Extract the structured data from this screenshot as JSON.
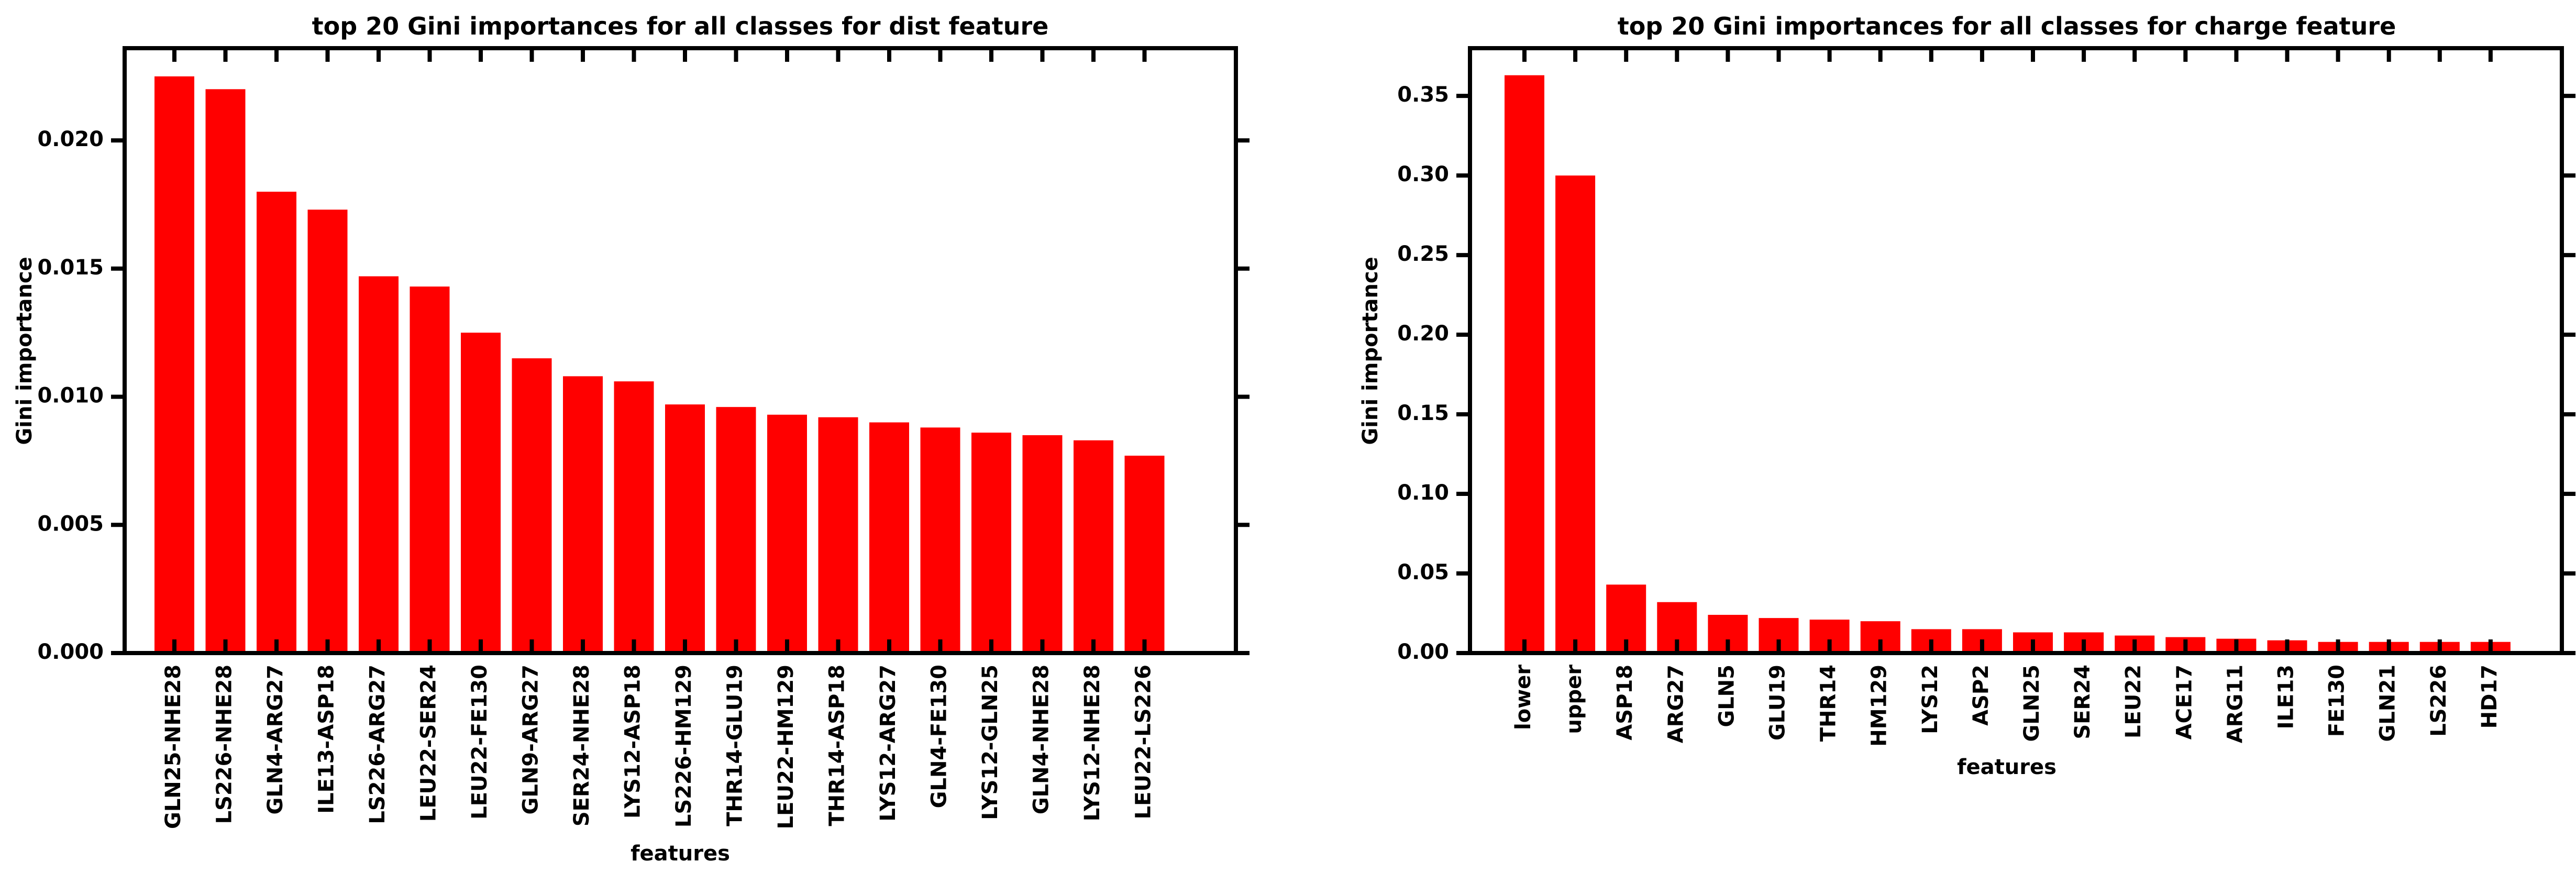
{
  "chart_data": [
    {
      "type": "bar",
      "title": "top 20 Gini importances for all classes for dist feature",
      "xlabel": "features",
      "ylabel": "Gini importance",
      "ylim": [
        0,
        0.0236
      ],
      "yticks": [
        "0.000",
        "0.005",
        "0.010",
        "0.015",
        "0.020"
      ],
      "ytick_values": [
        0,
        0.005,
        0.01,
        0.015,
        0.02
      ],
      "bar_color": "#ff0000",
      "grid": false,
      "categories": [
        "GLN25-NHE28",
        "LS226-NHE28",
        "GLN4-ARG27",
        "ILE13-ASP18",
        "LS226-ARG27",
        "LEU22-SER24",
        "LEU22-FE130",
        "GLN9-ARG27",
        "SER24-NHE28",
        "LYS12-ASP18",
        "LS226-HM129",
        "THR14-GLU19",
        "LEU22-HM129",
        "THR14-ASP18",
        "LYS12-ARG27",
        "GLN4-FE130",
        "LYS12-GLN25",
        "GLN4-NHE28",
        "LYS12-NHE28",
        "LEU22-LS226"
      ],
      "values": [
        0.0225,
        0.022,
        0.018,
        0.0173,
        0.0147,
        0.0143,
        0.0125,
        0.0115,
        0.0108,
        0.0106,
        0.0097,
        0.0096,
        0.0093,
        0.0092,
        0.009,
        0.0088,
        0.0086,
        0.0085,
        0.0083,
        0.0077
      ]
    },
    {
      "type": "bar",
      "title": "top 20 Gini importances for all classes for charge feature",
      "xlabel": "features",
      "ylabel": "Gini importance",
      "ylim": [
        0,
        0.38
      ],
      "yticks": [
        "0.00",
        "0.05",
        "0.10",
        "0.15",
        "0.20",
        "0.25",
        "0.30",
        "0.35"
      ],
      "ytick_values": [
        0,
        0.05,
        0.1,
        0.15,
        0.2,
        0.25,
        0.3,
        0.35
      ],
      "bar_color": "#ff0000",
      "grid": false,
      "categories": [
        "lower",
        "upper",
        "ASP18",
        "ARG27",
        "GLN5",
        "GLU19",
        "THR14",
        "HM129",
        "LYS12",
        "ASP2",
        "GLN25",
        "SER24",
        "LEU22",
        "ACE17",
        "ARG11",
        "ILE13",
        "FE130",
        "GLN21",
        "LS226",
        "HD17"
      ],
      "values": [
        0.363,
        0.3,
        0.043,
        0.032,
        0.024,
        0.022,
        0.021,
        0.02,
        0.015,
        0.015,
        0.013,
        0.013,
        0.011,
        0.01,
        0.009,
        0.008,
        0.007,
        0.007,
        0.007,
        0.007
      ]
    }
  ]
}
